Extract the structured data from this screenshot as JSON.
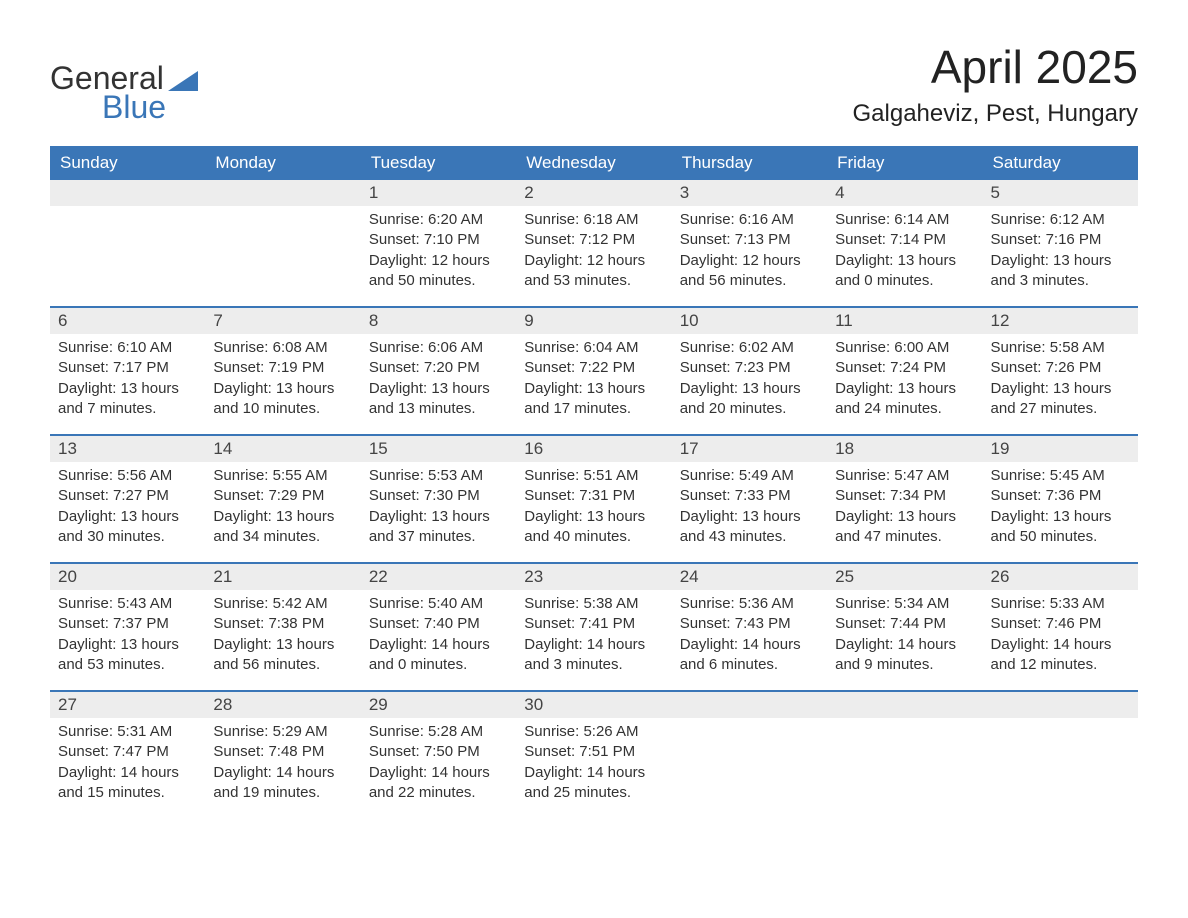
{
  "brand": {
    "word1": "General",
    "word2": "Blue",
    "text_color": "#333333",
    "accent_color": "#3a76b7"
  },
  "header": {
    "month_title": "April 2025",
    "location": "Galgaheviz, Pest, Hungary"
  },
  "colors": {
    "header_bg": "#3a76b7",
    "header_text": "#ffffff",
    "daynum_bg": "#ededed",
    "body_text": "#333333",
    "page_bg": "#ffffff",
    "week_border": "#3a76b7"
  },
  "typography": {
    "month_title_fontsize": 46,
    "location_fontsize": 24,
    "weekday_fontsize": 17,
    "daynum_fontsize": 17,
    "body_fontsize": 15
  },
  "weekdays": [
    "Sunday",
    "Monday",
    "Tuesday",
    "Wednesday",
    "Thursday",
    "Friday",
    "Saturday"
  ],
  "weeks": [
    [
      {
        "empty": true
      },
      {
        "empty": true
      },
      {
        "day": "1",
        "sunrise": "Sunrise: 6:20 AM",
        "sunset": "Sunset: 7:10 PM",
        "daylight1": "Daylight: 12 hours",
        "daylight2": "and 50 minutes."
      },
      {
        "day": "2",
        "sunrise": "Sunrise: 6:18 AM",
        "sunset": "Sunset: 7:12 PM",
        "daylight1": "Daylight: 12 hours",
        "daylight2": "and 53 minutes."
      },
      {
        "day": "3",
        "sunrise": "Sunrise: 6:16 AM",
        "sunset": "Sunset: 7:13 PM",
        "daylight1": "Daylight: 12 hours",
        "daylight2": "and 56 minutes."
      },
      {
        "day": "4",
        "sunrise": "Sunrise: 6:14 AM",
        "sunset": "Sunset: 7:14 PM",
        "daylight1": "Daylight: 13 hours",
        "daylight2": "and 0 minutes."
      },
      {
        "day": "5",
        "sunrise": "Sunrise: 6:12 AM",
        "sunset": "Sunset: 7:16 PM",
        "daylight1": "Daylight: 13 hours",
        "daylight2": "and 3 minutes."
      }
    ],
    [
      {
        "day": "6",
        "sunrise": "Sunrise: 6:10 AM",
        "sunset": "Sunset: 7:17 PM",
        "daylight1": "Daylight: 13 hours",
        "daylight2": "and 7 minutes."
      },
      {
        "day": "7",
        "sunrise": "Sunrise: 6:08 AM",
        "sunset": "Sunset: 7:19 PM",
        "daylight1": "Daylight: 13 hours",
        "daylight2": "and 10 minutes."
      },
      {
        "day": "8",
        "sunrise": "Sunrise: 6:06 AM",
        "sunset": "Sunset: 7:20 PM",
        "daylight1": "Daylight: 13 hours",
        "daylight2": "and 13 minutes."
      },
      {
        "day": "9",
        "sunrise": "Sunrise: 6:04 AM",
        "sunset": "Sunset: 7:22 PM",
        "daylight1": "Daylight: 13 hours",
        "daylight2": "and 17 minutes."
      },
      {
        "day": "10",
        "sunrise": "Sunrise: 6:02 AM",
        "sunset": "Sunset: 7:23 PM",
        "daylight1": "Daylight: 13 hours",
        "daylight2": "and 20 minutes."
      },
      {
        "day": "11",
        "sunrise": "Sunrise: 6:00 AM",
        "sunset": "Sunset: 7:24 PM",
        "daylight1": "Daylight: 13 hours",
        "daylight2": "and 24 minutes."
      },
      {
        "day": "12",
        "sunrise": "Sunrise: 5:58 AM",
        "sunset": "Sunset: 7:26 PM",
        "daylight1": "Daylight: 13 hours",
        "daylight2": "and 27 minutes."
      }
    ],
    [
      {
        "day": "13",
        "sunrise": "Sunrise: 5:56 AM",
        "sunset": "Sunset: 7:27 PM",
        "daylight1": "Daylight: 13 hours",
        "daylight2": "and 30 minutes."
      },
      {
        "day": "14",
        "sunrise": "Sunrise: 5:55 AM",
        "sunset": "Sunset: 7:29 PM",
        "daylight1": "Daylight: 13 hours",
        "daylight2": "and 34 minutes."
      },
      {
        "day": "15",
        "sunrise": "Sunrise: 5:53 AM",
        "sunset": "Sunset: 7:30 PM",
        "daylight1": "Daylight: 13 hours",
        "daylight2": "and 37 minutes."
      },
      {
        "day": "16",
        "sunrise": "Sunrise: 5:51 AM",
        "sunset": "Sunset: 7:31 PM",
        "daylight1": "Daylight: 13 hours",
        "daylight2": "and 40 minutes."
      },
      {
        "day": "17",
        "sunrise": "Sunrise: 5:49 AM",
        "sunset": "Sunset: 7:33 PM",
        "daylight1": "Daylight: 13 hours",
        "daylight2": "and 43 minutes."
      },
      {
        "day": "18",
        "sunrise": "Sunrise: 5:47 AM",
        "sunset": "Sunset: 7:34 PM",
        "daylight1": "Daylight: 13 hours",
        "daylight2": "and 47 minutes."
      },
      {
        "day": "19",
        "sunrise": "Sunrise: 5:45 AM",
        "sunset": "Sunset: 7:36 PM",
        "daylight1": "Daylight: 13 hours",
        "daylight2": "and 50 minutes."
      }
    ],
    [
      {
        "day": "20",
        "sunrise": "Sunrise: 5:43 AM",
        "sunset": "Sunset: 7:37 PM",
        "daylight1": "Daylight: 13 hours",
        "daylight2": "and 53 minutes."
      },
      {
        "day": "21",
        "sunrise": "Sunrise: 5:42 AM",
        "sunset": "Sunset: 7:38 PM",
        "daylight1": "Daylight: 13 hours",
        "daylight2": "and 56 minutes."
      },
      {
        "day": "22",
        "sunrise": "Sunrise: 5:40 AM",
        "sunset": "Sunset: 7:40 PM",
        "daylight1": "Daylight: 14 hours",
        "daylight2": "and 0 minutes."
      },
      {
        "day": "23",
        "sunrise": "Sunrise: 5:38 AM",
        "sunset": "Sunset: 7:41 PM",
        "daylight1": "Daylight: 14 hours",
        "daylight2": "and 3 minutes."
      },
      {
        "day": "24",
        "sunrise": "Sunrise: 5:36 AM",
        "sunset": "Sunset: 7:43 PM",
        "daylight1": "Daylight: 14 hours",
        "daylight2": "and 6 minutes."
      },
      {
        "day": "25",
        "sunrise": "Sunrise: 5:34 AM",
        "sunset": "Sunset: 7:44 PM",
        "daylight1": "Daylight: 14 hours",
        "daylight2": "and 9 minutes."
      },
      {
        "day": "26",
        "sunrise": "Sunrise: 5:33 AM",
        "sunset": "Sunset: 7:46 PM",
        "daylight1": "Daylight: 14 hours",
        "daylight2": "and 12 minutes."
      }
    ],
    [
      {
        "day": "27",
        "sunrise": "Sunrise: 5:31 AM",
        "sunset": "Sunset: 7:47 PM",
        "daylight1": "Daylight: 14 hours",
        "daylight2": "and 15 minutes."
      },
      {
        "day": "28",
        "sunrise": "Sunrise: 5:29 AM",
        "sunset": "Sunset: 7:48 PM",
        "daylight1": "Daylight: 14 hours",
        "daylight2": "and 19 minutes."
      },
      {
        "day": "29",
        "sunrise": "Sunrise: 5:28 AM",
        "sunset": "Sunset: 7:50 PM",
        "daylight1": "Daylight: 14 hours",
        "daylight2": "and 22 minutes."
      },
      {
        "day": "30",
        "sunrise": "Sunrise: 5:26 AM",
        "sunset": "Sunset: 7:51 PM",
        "daylight1": "Daylight: 14 hours",
        "daylight2": "and 25 minutes."
      },
      {
        "empty": true
      },
      {
        "empty": true
      },
      {
        "empty": true
      }
    ]
  ]
}
